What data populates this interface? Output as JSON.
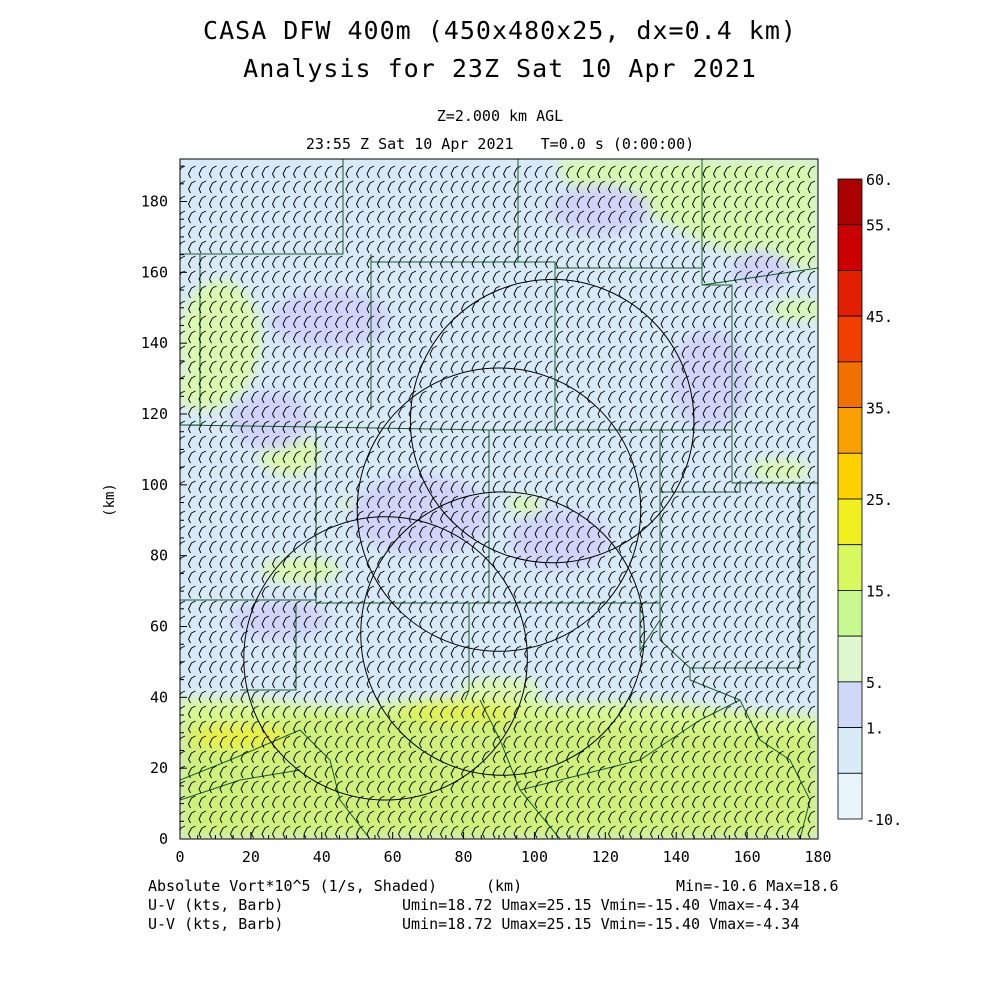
{
  "title": {
    "line1": "CASA DFW 400m (450x480x25, dx=0.4 km)",
    "line2": "Analysis for 23Z Sat 10 Apr 2021"
  },
  "subtitle": {
    "level": "Z=2.000 km AGL",
    "time": "23:55 Z Sat 10 Apr 2021   T=0.0 s (0:00:00)"
  },
  "axes": {
    "ylabel": "(km)",
    "xlabel": "(km)",
    "x_ticks": [
      "0",
      "20",
      "40",
      "60",
      "80",
      "100",
      "120",
      "140",
      "160",
      "180"
    ],
    "y_ticks": [
      "0",
      "20",
      "40",
      "60",
      "80",
      "100",
      "120",
      "140",
      "160",
      "180"
    ],
    "x_range": [
      0,
      180
    ],
    "y_range": [
      0,
      192
    ]
  },
  "colorbar": {
    "labels": [
      "60.",
      "55.",
      "45.",
      "35.",
      "25.",
      "15.",
      "5.",
      "1.",
      "-10."
    ],
    "colors": [
      "#aa0000",
      "#cc0000",
      "#e02000",
      "#f04000",
      "#f07000",
      "#f8a000",
      "#ffd000",
      "#f0f020",
      "#d8f860",
      "#c8f890",
      "#e0f8d0",
      "#d0d8f8",
      "#d8ecf8",
      "#e8f6fc"
    ]
  },
  "footer": {
    "field_label": "Absolute Vort*10^5 (1/s, Shaded)",
    "axis_unit": "(km)",
    "minmax": "Min=-10.6 Max=18.6",
    "barb1_label": "U-V (kts, Barb)",
    "barb1_stats": "Umin=18.72 Umax=25.15 Vmin=-15.40 Vmax=-4.34",
    "barb2_label": "U-V (kts, Barb)",
    "barb2_stats": "Umin=18.72 Umax=25.15 Vmin=-15.40 Vmax=-4.34"
  },
  "map": {
    "radar_rings_km": [
      {
        "cx": 105,
        "cy": 118,
        "r": 40
      },
      {
        "cx": 90,
        "cy": 93,
        "r": 40
      },
      {
        "cx": 91,
        "cy": 58,
        "r": 40
      },
      {
        "cx": 58,
        "cy": 51,
        "r": 40
      }
    ],
    "colors": {
      "background_field": "#d8eaf8",
      "county_lines": "#1a5a2a",
      "rings": "#000000"
    }
  }
}
